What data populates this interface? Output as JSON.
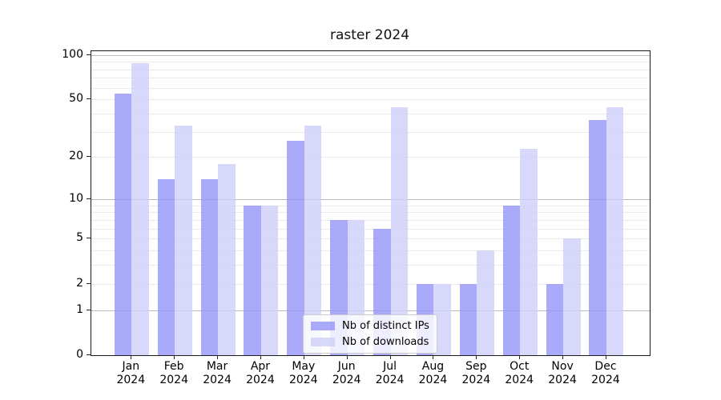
{
  "chart_data": {
    "type": "bar",
    "title": "raster 2024",
    "categories": [
      "Jan 2024",
      "Feb 2024",
      "Mar 2024",
      "Apr 2024",
      "May 2024",
      "Jun 2024",
      "Jul 2024",
      "Aug 2024",
      "Sep 2024",
      "Oct 2024",
      "Nov 2024",
      "Dec 2024"
    ],
    "category_months": [
      "Jan",
      "Feb",
      "Mar",
      "Apr",
      "May",
      "Jun",
      "Jul",
      "Aug",
      "Sep",
      "Oct",
      "Nov",
      "Dec"
    ],
    "category_year": "2024",
    "series": [
      {
        "name": "Nb of distinct IPs",
        "color": "rgba(149,149,249,0.8)",
        "values": [
          55,
          14,
          14,
          9,
          26,
          7,
          6,
          2,
          2,
          9,
          2,
          36
        ]
      },
      {
        "name": "Nb of downloads",
        "color": "rgba(206,206,249,0.8)",
        "values": [
          88,
          33,
          18,
          9,
          33,
          7,
          44,
          2,
          4,
          23,
          5,
          44
        ]
      }
    ],
    "yscale": "log1p",
    "ylim": [
      0,
      106
    ],
    "yticks": [
      {
        "value": 0,
        "label": "0"
      },
      {
        "value": 1,
        "label": "1"
      },
      {
        "value": 2,
        "label": "2"
      },
      {
        "value": 5,
        "label": "5"
      },
      {
        "value": 10,
        "label": "10"
      },
      {
        "value": 20,
        "label": "20"
      },
      {
        "value": 50,
        "label": "50"
      },
      {
        "value": 100,
        "label": "100"
      }
    ],
    "major_gridlines": [
      1,
      10,
      100
    ],
    "minor_gridlines": [
      2,
      3,
      4,
      5,
      6,
      7,
      8,
      9,
      20,
      30,
      40,
      50,
      60,
      70,
      80,
      90
    ],
    "grid": true,
    "legend_position": "lower-center"
  }
}
